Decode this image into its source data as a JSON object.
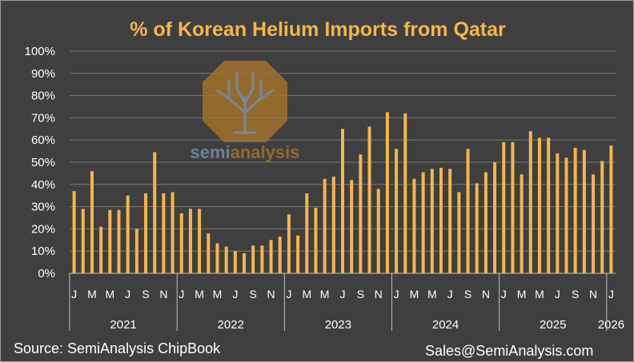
{
  "footer": {
    "source": "Source: SemiAnalysis ChipBook",
    "contact": "Sales@SemiAnalysis.com"
  },
  "watermark": {
    "text_prefix": "semi",
    "text_suffix": "analysis",
    "icon": "tree-logo-icon"
  },
  "colors": {
    "background": "#3f3f3f",
    "bar": "#f5b64c",
    "title": "#f5b64c",
    "text": "#ffffff",
    "grid": "#7a7a7a"
  },
  "chart_data": {
    "type": "bar",
    "title": "% of Korean Helium Imports from Qatar",
    "xlabel": "",
    "ylabel": "",
    "ylim": [
      0,
      100
    ],
    "y_ticks": [
      "0%",
      "10%",
      "20%",
      "30%",
      "40%",
      "50%",
      "60%",
      "70%",
      "80%",
      "90%",
      "100%"
    ],
    "grid": true,
    "legend": "none",
    "years": [
      {
        "label": "2021",
        "months": 12
      },
      {
        "label": "2022",
        "months": 12
      },
      {
        "label": "2023",
        "months": 12
      },
      {
        "label": "2024",
        "months": 12
      },
      {
        "label": "2025",
        "months": 12
      },
      {
        "label": "2026",
        "months": 1
      }
    ],
    "month_tick_labels": [
      "J",
      "M",
      "M",
      "J",
      "S",
      "N"
    ],
    "last_tick_label": "J",
    "categories": [
      "2021-01",
      "2021-02",
      "2021-03",
      "2021-04",
      "2021-05",
      "2021-06",
      "2021-07",
      "2021-08",
      "2021-09",
      "2021-10",
      "2021-11",
      "2021-12",
      "2022-01",
      "2022-02",
      "2022-03",
      "2022-04",
      "2022-05",
      "2022-06",
      "2022-07",
      "2022-08",
      "2022-09",
      "2022-10",
      "2022-11",
      "2022-12",
      "2023-01",
      "2023-02",
      "2023-03",
      "2023-04",
      "2023-05",
      "2023-06",
      "2023-07",
      "2023-08",
      "2023-09",
      "2023-10",
      "2023-11",
      "2023-12",
      "2024-01",
      "2024-02",
      "2024-03",
      "2024-04",
      "2024-05",
      "2024-06",
      "2024-07",
      "2024-08",
      "2024-09",
      "2024-10",
      "2024-11",
      "2024-12",
      "2025-01",
      "2025-02",
      "2025-03",
      "2025-04",
      "2025-05",
      "2025-06",
      "2025-07",
      "2025-08",
      "2025-09",
      "2025-10",
      "2025-11",
      "2025-12",
      "2026-01"
    ],
    "values": [
      37,
      29,
      46,
      21,
      28.5,
      28.5,
      35,
      20,
      36,
      54.5,
      36,
      36.5,
      27,
      29,
      29,
      18,
      13.5,
      12,
      10,
      9,
      12.5,
      12.5,
      15,
      16.5,
      26.5,
      17,
      36,
      29.5,
      42.5,
      43.5,
      65,
      42,
      53.5,
      66,
      38,
      72.5,
      56,
      72,
      42.5,
      45.5,
      47,
      47.5,
      47,
      36.5,
      56,
      40.5,
      45.5,
      50,
      59,
      59,
      44.5,
      64,
      61,
      61,
      54,
      52,
      56.5,
      55.5,
      44.5,
      50.5,
      57.5
    ]
  }
}
